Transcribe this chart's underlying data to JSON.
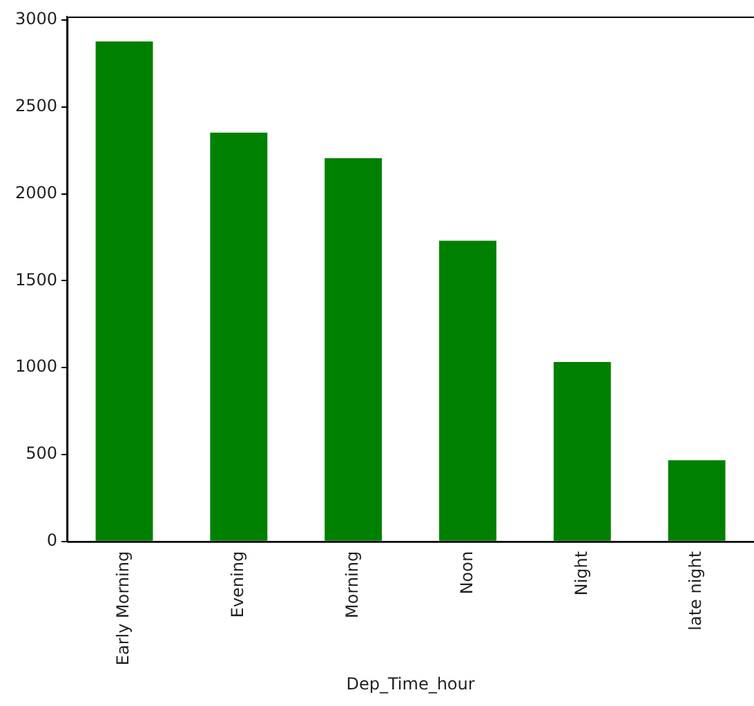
{
  "chart_data": {
    "type": "bar",
    "xlabel": "Dep_Time_hour",
    "categories": [
      "Early Morning",
      "Evening",
      "Morning",
      "Noon",
      "Night",
      "late night"
    ],
    "values": [
      2877,
      2352,
      2205,
      1730,
      1033,
      467
    ],
    "color": "#008000",
    "ylim": [
      0,
      3020
    ],
    "yticks": [
      0,
      500,
      1000,
      1500,
      2000,
      2500,
      3000
    ],
    "grid": false,
    "legend": false
  }
}
